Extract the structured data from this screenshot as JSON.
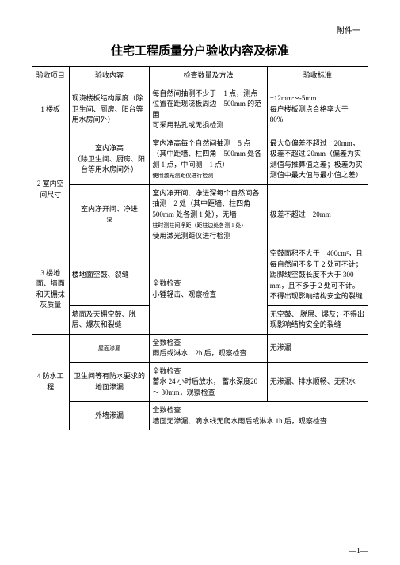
{
  "attachment": "附件一",
  "title": "住宅工程质量分户验收内容及标准",
  "headers": {
    "col1": "验收项目",
    "col2": "验收内容",
    "col3": "检查数量及方法",
    "col4": "验收标准"
  },
  "rows": {
    "r1": {
      "project": "1 楼板",
      "content": "现浇楼板结构厚度（除卫生间、厨房、阳台等用水房间外）",
      "method": "每自然间抽测不少于　1 点，测点位置在距现浇板周边　500mm 的范围\n可采用钻孔或无损检测",
      "standard": "+12mm～-5mm\n每户楼板测点合格率大于　80%"
    },
    "r2": {
      "project": "2 室内空间尺寸",
      "content1": "室内净高\n（除卫生间、厨房、阳台等用水房间外）",
      "method1": "室内净高每个自然间抽测　5 点（其中距墙、柱四角　500mm 处各测 1 点，中间测　1 点）",
      "method1_small": "使用激光测距仪进行检测",
      "standard1": "最大负偏差不超过　20mm，极差不超过 20mm（偏差为实测值与推算值之差；极差为实测值中最大值与最小值之差）",
      "content2": "室内净开间、净进",
      "content2_small": "深",
      "method2": "室内净开间、净进深每个自然间各抽测　2 处（其中距墙、柱四角 500mm 处各测 1 处），无墙",
      "method2_small": "柱时测柱间净距（距柱边处各测 1 处）",
      "method2_end": "使用激光测距仪进行检测",
      "standard2": "极差不超过　20mm"
    },
    "r3": {
      "project": "3 楼地面、墙面和天棚抹灰质量",
      "content1": "楼地面空鼓、裂缝",
      "method1": "全数检查\n小锤轻击、观察检查",
      "standard1": "空鼓面积不大于　400cm²，且每自然间不多于 2 处可不计；踢脚线空鼓长度不大于 300 mm，且不多于 2 处可不计。不得出现影响结构安全的裂缝",
      "content2": "墙面及天棚空鼓、脱层、爆灰和裂缝",
      "standard2": "无空鼓、 脱层、爆灰；不得出现影响结构安全的裂缝"
    },
    "r4": {
      "project": "4 防水工程",
      "content1": "屋面渗漏",
      "method1": "全数检查\n雨后或淋水　2h 后，观察检查",
      "standard1": "无渗漏",
      "content2": "卫生间等有防水要求的地面渗漏",
      "method2": "全数检查\n蓄水 24 小时后放水， 蓄水深度20～ 30mm，观察检查",
      "standard2": "无渗漏、排水顺畅、无积水",
      "content3": "外墙渗漏",
      "method3": "全数检查\n墙面无渗漏、滴水线无爬水雨后或淋水 1h 后，观察检查"
    }
  },
  "pageNum": "1"
}
